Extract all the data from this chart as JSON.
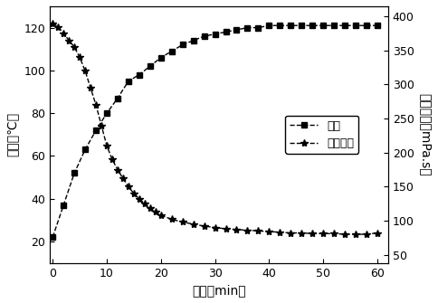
{
  "temp_time": [
    0,
    2,
    4,
    6,
    8,
    10,
    12,
    14,
    16,
    18,
    20,
    22,
    24,
    26,
    28,
    30,
    32,
    34,
    36,
    38,
    40,
    42,
    44,
    46,
    48,
    50,
    52,
    54,
    56,
    58,
    60
  ],
  "temp_values": [
    22,
    37,
    52,
    63,
    72,
    80,
    87,
    95,
    98,
    102,
    106,
    109,
    112,
    114,
    116,
    117,
    118,
    119,
    120,
    120,
    121,
    121,
    121,
    121,
    121,
    121,
    121,
    121,
    121,
    121,
    121
  ],
  "visc_time": [
    0,
    1,
    2,
    3,
    4,
    5,
    6,
    7,
    8,
    9,
    10,
    11,
    12,
    13,
    14,
    15,
    16,
    17,
    18,
    19,
    20,
    22,
    24,
    26,
    28,
    30,
    32,
    34,
    36,
    38,
    40,
    42,
    44,
    46,
    48,
    50,
    52,
    54,
    56,
    58,
    60
  ],
  "visc_values": [
    390,
    385,
    375,
    365,
    355,
    340,
    320,
    295,
    270,
    240,
    210,
    190,
    175,
    162,
    150,
    140,
    132,
    125,
    118,
    113,
    108,
    102,
    98,
    95,
    92,
    90,
    88,
    87,
    86,
    85,
    84,
    83,
    82,
    82,
    81,
    81,
    81,
    80,
    80,
    80,
    82
  ],
  "left_ylim": [
    10,
    130
  ],
  "left_yticks": [
    20,
    40,
    60,
    80,
    100,
    120
  ],
  "right_ylim": [
    38,
    415
  ],
  "right_yticks": [
    50,
    100,
    150,
    200,
    250,
    300,
    350,
    400
  ],
  "xlim": [
    -0.5,
    62
  ],
  "xticks": [
    0,
    10,
    20,
    30,
    40,
    50,
    60
  ],
  "xlabel": "时间（min）",
  "ylabel_left": "温度（℃）",
  "ylabel_right": "表观粘度（mPa.s）",
  "legend_temp": "温度",
  "legend_visc": "表观粘度",
  "line_color": "#000000",
  "marker_temp": "s",
  "marker_visc": "*",
  "markersize_temp": 4,
  "markersize_visc": 6,
  "linewidth": 1.0,
  "fontsize_label": 10,
  "fontsize_tick": 9,
  "fontsize_legend": 9,
  "background": "#ffffff"
}
